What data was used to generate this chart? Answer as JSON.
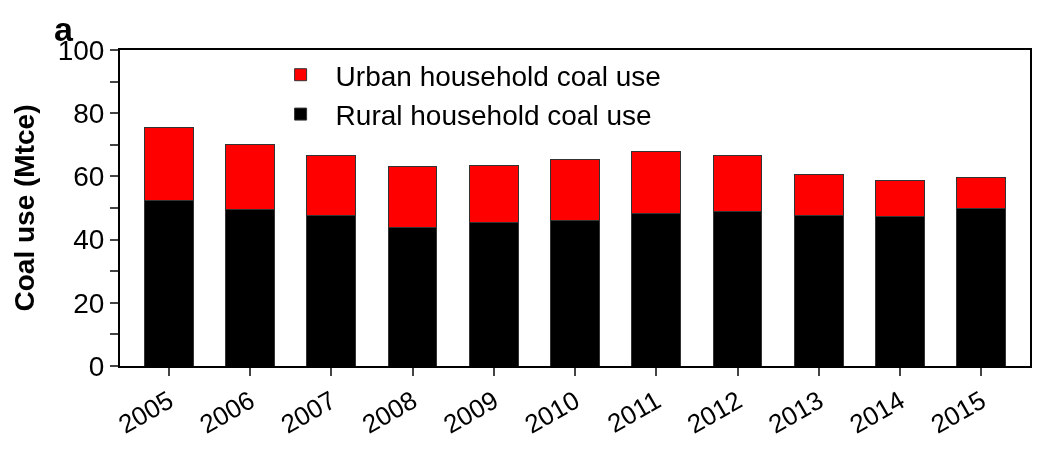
{
  "chart_data": {
    "type": "bar",
    "stacked": true,
    "ylabel": "Coal use (Mtce)",
    "annotations": [
      "a"
    ],
    "categories": [
      "2005",
      "2006",
      "2007",
      "2008",
      "2009",
      "2010",
      "2011",
      "2012",
      "2013",
      "2014",
      "2015"
    ],
    "series": [
      {
        "name": "Rural household coal use",
        "color": "#000000",
        "values": [
          52.3,
          49.4,
          47.7,
          43.9,
          45.3,
          45.9,
          48.2,
          49.0,
          47.6,
          47.4,
          49.7
        ]
      },
      {
        "name": "Urban household coal use",
        "color": "#ff0000",
        "values": [
          23.1,
          20.7,
          18.8,
          19.2,
          18.3,
          19.3,
          19.6,
          17.5,
          12.9,
          11.3,
          10.0
        ]
      }
    ],
    "ylim": [
      0,
      100
    ],
    "yticks": [
      0,
      {
        "value": 10,
        "label": null
      },
      20,
      {
        "value": 30,
        "label": null
      },
      40,
      {
        "value": 50,
        "label": null
      },
      60,
      {
        "value": 70,
        "label": null
      },
      80,
      {
        "value": 90,
        "label": null
      },
      100
    ],
    "legend": "top"
  }
}
